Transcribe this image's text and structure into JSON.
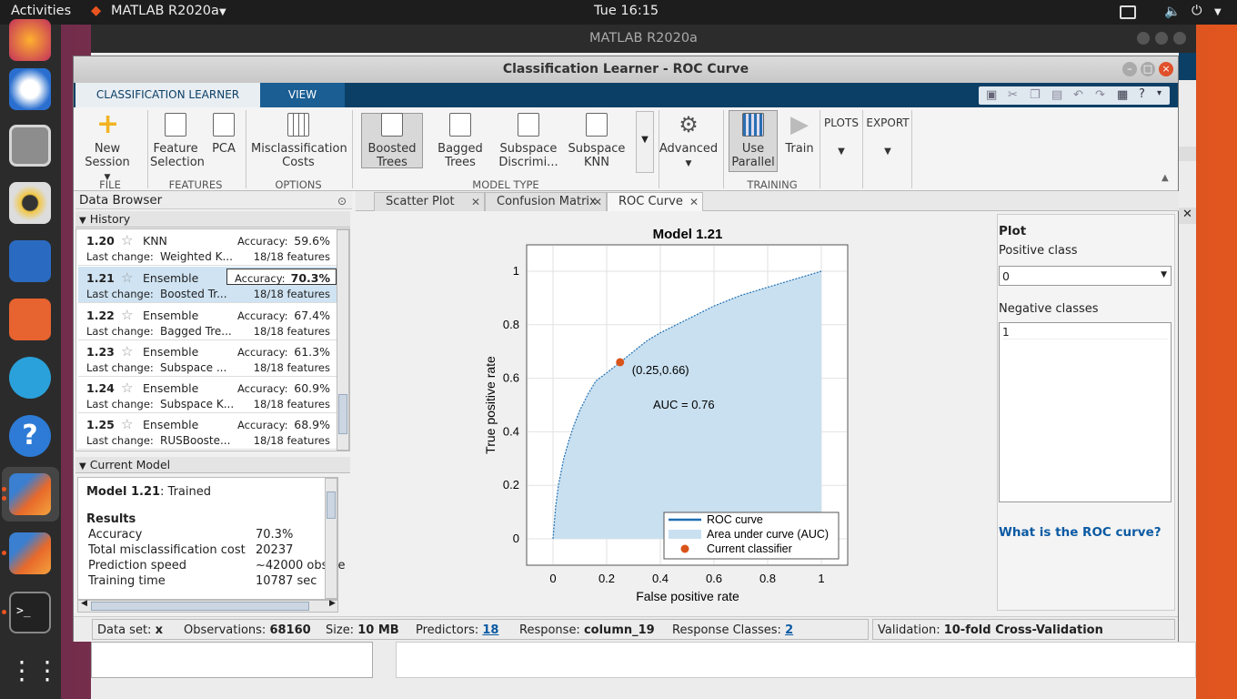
{
  "topbar": {
    "activities": "Activities",
    "app_menu": "MATLAB R2020a",
    "clock": "Tue 16:15"
  },
  "dock": {
    "apps": [
      "firefox-icon",
      "thunderbird-icon",
      "files-icon",
      "rhythmbox-icon",
      "libreoffice-writer-icon",
      "software-icon",
      "telegram-icon",
      "help-icon",
      "matlab-icon",
      "matlab-icon",
      "terminal-icon",
      "show-apps-icon"
    ]
  },
  "bg_window": {
    "title": "MATLAB R2020a"
  },
  "window": {
    "title": "Classification Learner - ROC Curve"
  },
  "ribbon": {
    "tabs": [
      "CLASSIFICATION LEARNER",
      "VIEW"
    ],
    "new_session": "New Session",
    "feature_selection": "Feature Selection",
    "pca": "PCA",
    "misclass": "Misclassification Costs",
    "boosted": "Boosted Trees",
    "bagged": "Bagged Trees",
    "subspace_discrim": "Subspace Discrimi...",
    "subspace_knn": "Subspace KNN",
    "advanced": "Advanced",
    "use_parallel": "Use Parallel",
    "train": "Train",
    "plots": "PLOTS",
    "export": "EXPORT",
    "groups": {
      "file": "FILE",
      "features": "FEATURES",
      "options": "OPTIONS",
      "model_type": "MODEL TYPE",
      "training": "TRAINING"
    }
  },
  "data_browser": {
    "title": "Data Browser",
    "history_label": "History",
    "accuracy_label": "Accuracy:",
    "last_change_label": "Last change:",
    "models": [
      {
        "num": "1.20",
        "type": "KNN",
        "accuracy": "59.6%",
        "last_change": "Weighted K...",
        "features": "18/18 features"
      },
      {
        "num": "1.21",
        "type": "Ensemble",
        "accuracy": "70.3%",
        "last_change": "Boosted Tr...",
        "features": "18/18 features"
      },
      {
        "num": "1.22",
        "type": "Ensemble",
        "accuracy": "67.4%",
        "last_change": "Bagged Tre...",
        "features": "18/18 features"
      },
      {
        "num": "1.23",
        "type": "Ensemble",
        "accuracy": "61.3%",
        "last_change": "Subspace ...",
        "features": "18/18 features"
      },
      {
        "num": "1.24",
        "type": "Ensemble",
        "accuracy": "60.9%",
        "last_change": "Subspace K...",
        "features": "18/18 features"
      },
      {
        "num": "1.25",
        "type": "Ensemble",
        "accuracy": "68.9%",
        "last_change": "RUSBooste...",
        "features": "18/18 features"
      }
    ]
  },
  "current_model": {
    "header": "Current Model",
    "model": "Model 1.21",
    "status": ": Trained",
    "results_label": "Results",
    "rows": [
      {
        "k": "Accuracy",
        "v": "70.3%"
      },
      {
        "k": "Total misclassification cost",
        "v": "20237"
      },
      {
        "k": "Prediction speed",
        "v": "~42000 obs/se"
      },
      {
        "k": "Training time",
        "v": "10787 sec"
      }
    ]
  },
  "tabs": [
    "Scatter Plot",
    "Confusion Matrix",
    "ROC Curve"
  ],
  "chart_data": {
    "type": "line",
    "title": "Model 1.21",
    "xlabel": "False positive rate",
    "ylabel": "True positive rate",
    "xlim": [
      0,
      1
    ],
    "ylim": [
      0,
      1
    ],
    "xticks": [
      "0",
      "0.2",
      "0.4",
      "0.6",
      "0.8",
      "1"
    ],
    "yticks": [
      "0",
      "0.2",
      "0.4",
      "0.6",
      "0.8",
      "1"
    ],
    "grid": true,
    "series": [
      {
        "name": "ROC curve",
        "x": [
          0,
          0.01,
          0.02,
          0.04,
          0.06,
          0.08,
          0.1,
          0.13,
          0.16,
          0.2,
          0.25,
          0.3,
          0.35,
          0.4,
          0.5,
          0.6,
          0.7,
          0.8,
          0.9,
          1
        ],
        "y": [
          0,
          0.12,
          0.2,
          0.3,
          0.37,
          0.43,
          0.48,
          0.54,
          0.59,
          0.62,
          0.66,
          0.7,
          0.74,
          0.77,
          0.82,
          0.87,
          0.91,
          0.94,
          0.97,
          1
        ]
      }
    ],
    "current_point": {
      "x": 0.25,
      "y": 0.66,
      "label": "(0.25,0.66)"
    },
    "auc_label": "AUC = 0.76",
    "legend": [
      "ROC curve",
      "Area under curve (AUC)",
      "Current classifier"
    ],
    "legend_position": "bottom-right",
    "colors": {
      "line": "#1f6fb3",
      "area": "#c9e0f0",
      "point": "#d9541a"
    }
  },
  "right_panel": {
    "title": "Plot",
    "positive_label": "Positive class",
    "positive_value": "0",
    "negative_label": "Negative classes",
    "negative_items": [
      "1"
    ],
    "help_link": "What is the ROC curve?"
  },
  "status": {
    "dataset_label": "Data set:",
    "dataset": "x",
    "obs_label": "Observations:",
    "obs": "68160",
    "size_label": "Size:",
    "size": "10 MB",
    "pred_label": "Predictors:",
    "pred": "18",
    "resp_label": "Response:",
    "resp": "column_19",
    "classes_label": "Response Classes:",
    "classes": "2",
    "validation_label": "Validation:",
    "validation": "10-fold Cross-Validation"
  }
}
